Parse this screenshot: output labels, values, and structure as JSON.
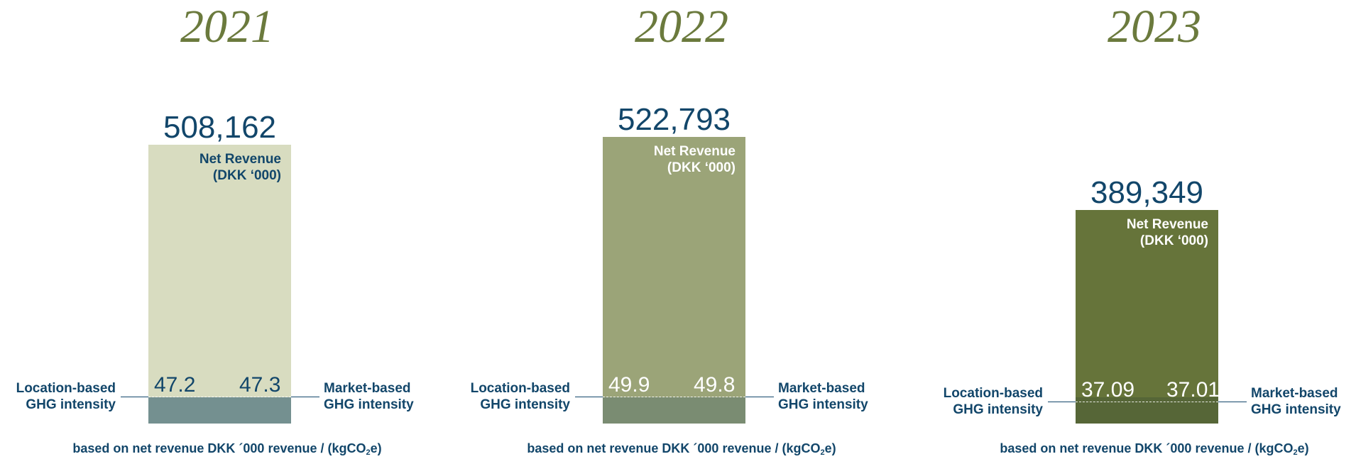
{
  "chart_data": [
    {
      "type": "bar",
      "title": "2021",
      "total": {
        "value": 508162,
        "text": "508,162"
      },
      "bar_label_lines": [
        "Net Revenue",
        "(DKK ‘000)"
      ],
      "location_based": {
        "value": 47.2,
        "text": "47.2"
      },
      "market_based": {
        "value": 47.3,
        "text": "47.3"
      },
      "left_label_lines": [
        "Location-based",
        "GHG intensity"
      ],
      "right_label_lines": [
        "Market-based",
        "GHG intensity"
      ],
      "footnote_main": "based on net revenue DKK ´000 revenue / (kgCO",
      "footnote_sub": "2",
      "footnote_end": "e)",
      "colors": {
        "bar": "#d8dcc0",
        "bottom": "#749090",
        "bar_label": "#12466a",
        "values": "#12466a"
      }
    },
    {
      "type": "bar",
      "title": "2022",
      "total": {
        "value": 522793,
        "text": "522,793"
      },
      "bar_label_lines": [
        "Net Revenue",
        "(DKK ‘000)"
      ],
      "location_based": {
        "value": 49.9,
        "text": "49.9"
      },
      "market_based": {
        "value": 49.8,
        "text": "49.8"
      },
      "left_label_lines": [
        "Location-based",
        "GHG intensity"
      ],
      "right_label_lines": [
        "Market-based",
        "GHG intensity"
      ],
      "footnote_main": "based on net revenue DKK ´000 revenue / (kgCO",
      "footnote_sub": "2",
      "footnote_end": "e)",
      "colors": {
        "bar": "#9ba478",
        "bottom": "#7a8c72",
        "bar_label": "#ffffff",
        "values": "#ffffff"
      }
    },
    {
      "type": "bar",
      "title": "2023",
      "total": {
        "value": 389349,
        "text": "389,349"
      },
      "bar_label_lines": [
        "Net Revenue",
        "(DKK ‘000)"
      ],
      "location_based": {
        "value": 37.09,
        "text": "37.09"
      },
      "market_based": {
        "value": 37.01,
        "text": "37.01"
      },
      "left_label_lines": [
        "Location-based",
        "GHG intensity"
      ],
      "right_label_lines": [
        "Market-based",
        "GHG intensity"
      ],
      "footnote_main": "based on net revenue DKK ´000 revenue / (kgCO",
      "footnote_sub": "2",
      "footnote_end": "e)",
      "colors": {
        "bar": "#66743a",
        "bottom": "#566637",
        "bar_label": "#ffffff",
        "values": "#ffffff"
      }
    }
  ]
}
